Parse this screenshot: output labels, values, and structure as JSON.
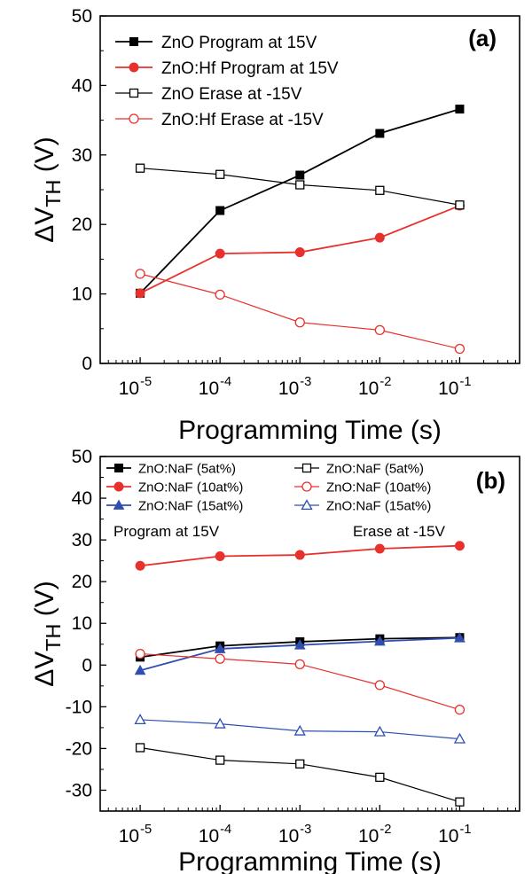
{
  "chart_data": [
    {
      "type": "line",
      "panel_label": "(a)",
      "xlabel": "Programming Time (s)",
      "ylabel": "ΔV",
      "ylabel_sub": "TH",
      "ylabel_unit": " (V)",
      "x": [
        1e-05,
        0.0001,
        0.001,
        0.01,
        0.1
      ],
      "x_tick_labels": [
        {
          "base": "10",
          "exp": "-5"
        },
        {
          "base": "10",
          "exp": "-4"
        },
        {
          "base": "10",
          "exp": "-3"
        },
        {
          "base": "10",
          "exp": "-2"
        },
        {
          "base": "10",
          "exp": "-1"
        }
      ],
      "x_scale": "log",
      "xlim": [
        3.16e-06,
        0.562
      ],
      "ylim": [
        0,
        50
      ],
      "y_ticks": [
        0,
        10,
        20,
        30,
        40,
        50
      ],
      "legend_position": "top-left",
      "series": [
        {
          "name": "ZnO Program at 15V",
          "color": "#000000",
          "marker": "square-filled",
          "values": [
            10.1,
            22.0,
            27.1,
            33.1,
            36.6
          ]
        },
        {
          "name": "ZnO:Hf Program at 15V",
          "color": "#e8312c",
          "marker": "circle-filled",
          "values": [
            10.1,
            15.8,
            16.0,
            18.1,
            22.7
          ]
        },
        {
          "name": "ZnO Erase at -15V",
          "color": "#000000",
          "marker": "square-open",
          "values": [
            28.1,
            27.2,
            25.7,
            24.9,
            22.8
          ]
        },
        {
          "name": "ZnO:Hf Erase at -15V",
          "color": "#e8312c",
          "marker": "circle-open",
          "values": [
            12.9,
            9.9,
            5.9,
            4.8,
            2.1
          ]
        }
      ]
    },
    {
      "type": "line",
      "panel_label": "(b)",
      "xlabel": "Programming Time (s)",
      "ylabel": "ΔV",
      "ylabel_sub": "TH",
      "ylabel_unit": " (V)",
      "x": [
        1e-05,
        0.0001,
        0.001,
        0.01,
        0.1
      ],
      "x_tick_labels": [
        {
          "base": "10",
          "exp": "-5"
        },
        {
          "base": "10",
          "exp": "-4"
        },
        {
          "base": "10",
          "exp": "-3"
        },
        {
          "base": "10",
          "exp": "-2"
        },
        {
          "base": "10",
          "exp": "-1"
        }
      ],
      "x_scale": "log",
      "xlim": [
        3.16e-06,
        0.562
      ],
      "ylim": [
        -35,
        50
      ],
      "y_ticks": [
        -30,
        -20,
        -10,
        0,
        10,
        20,
        30,
        40,
        50
      ],
      "legend_position": "top-left",
      "annotations": [
        "Program at 15V",
        "Erase at -15V"
      ],
      "series": [
        {
          "name": "ZnO:NaF (5at%)",
          "color": "#000000",
          "marker": "square-filled",
          "values": [
            1.9,
            4.6,
            5.6,
            6.3,
            6.6
          ]
        },
        {
          "name": "ZnO:NaF (10at%)",
          "color": "#e8312c",
          "marker": "circle-filled",
          "values": [
            23.8,
            26.1,
            26.4,
            27.9,
            28.6
          ]
        },
        {
          "name": "ZnO:NaF (15at%)",
          "color": "#2f4fb0",
          "marker": "triangle-filled",
          "values": [
            -1.3,
            3.9,
            4.8,
            5.7,
            6.5
          ]
        },
        {
          "name": "ZnO:NaF (5at%)",
          "color": "#000000",
          "marker": "square-open",
          "values": [
            -19.8,
            -22.8,
            -23.7,
            -26.9,
            -32.8
          ]
        },
        {
          "name": "ZnO:NaF (10at%)",
          "color": "#e8312c",
          "marker": "circle-open",
          "values": [
            2.7,
            1.5,
            0.2,
            -4.8,
            -10.7
          ]
        },
        {
          "name": "ZnO:NaF (15at%)",
          "color": "#2f4fb0",
          "marker": "triangle-open",
          "values": [
            -13.1,
            -14.1,
            -15.8,
            -16.0,
            -17.7
          ]
        }
      ]
    }
  ]
}
